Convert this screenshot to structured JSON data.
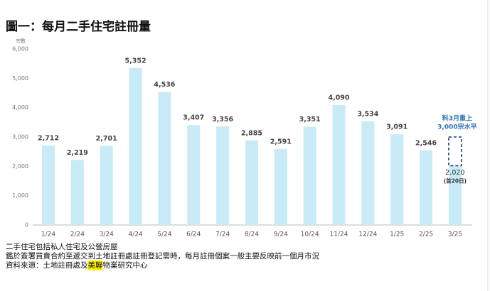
{
  "chart_data": {
    "type": "bar",
    "title": "圖一：每月二手住宅註冊量",
    "y_unit": "宗數",
    "categories": [
      "1/24",
      "2/24",
      "3/24",
      "4/24",
      "5/24",
      "6/24",
      "7/24",
      "8/24",
      "9/24",
      "10/24",
      "11/24",
      "12/24",
      "1/25",
      "2/25",
      "3/25"
    ],
    "values": [
      2712,
      2219,
      2701,
      5352,
      4536,
      3407,
      3356,
      2885,
      2591,
      3351,
      4090,
      3534,
      3091,
      2546,
      2020
    ],
    "value_labels": [
      "2,712",
      "2,219",
      "2,701",
      "5,352",
      "4,536",
      "3,407",
      "3,356",
      "2,885",
      "2,591",
      "3,351",
      "4,090",
      "3,534",
      "3,091",
      "2,546",
      "2,020"
    ],
    "color": "#c9ebf8",
    "ylim": [
      0,
      6000
    ],
    "yticks": [
      0,
      {
        "value": 1000,
        "label": "1,000"
      },
      {
        "value": 2000,
        "label": "2,000"
      },
      {
        "value": 3000,
        "label": "3,000"
      },
      {
        "value": 4000,
        "label": "4,000"
      },
      {
        "value": 5000,
        "label": "5,000"
      },
      {
        "value": 6000,
        "label": "6,000"
      }
    ],
    "projection": {
      "category": "3/25",
      "value": 3000,
      "partial_note": "(首20日)",
      "annotation": [
        "料3月重上",
        "3,000宗水平"
      ],
      "color": "#2e75b6",
      "box_color": "#1f3864"
    },
    "notes": [
      "二手住宅包括私人住宅及公營房屋",
      "鑑於簽署買賣合約至遞交到土地註冊處註冊登記需時，每月註冊個案一般主要反映前一個月市況"
    ],
    "source_parts": [
      "資料來源：土地註冊處及",
      "美聯",
      "物業研究中心"
    ],
    "highlight_color": "#fff200"
  }
}
